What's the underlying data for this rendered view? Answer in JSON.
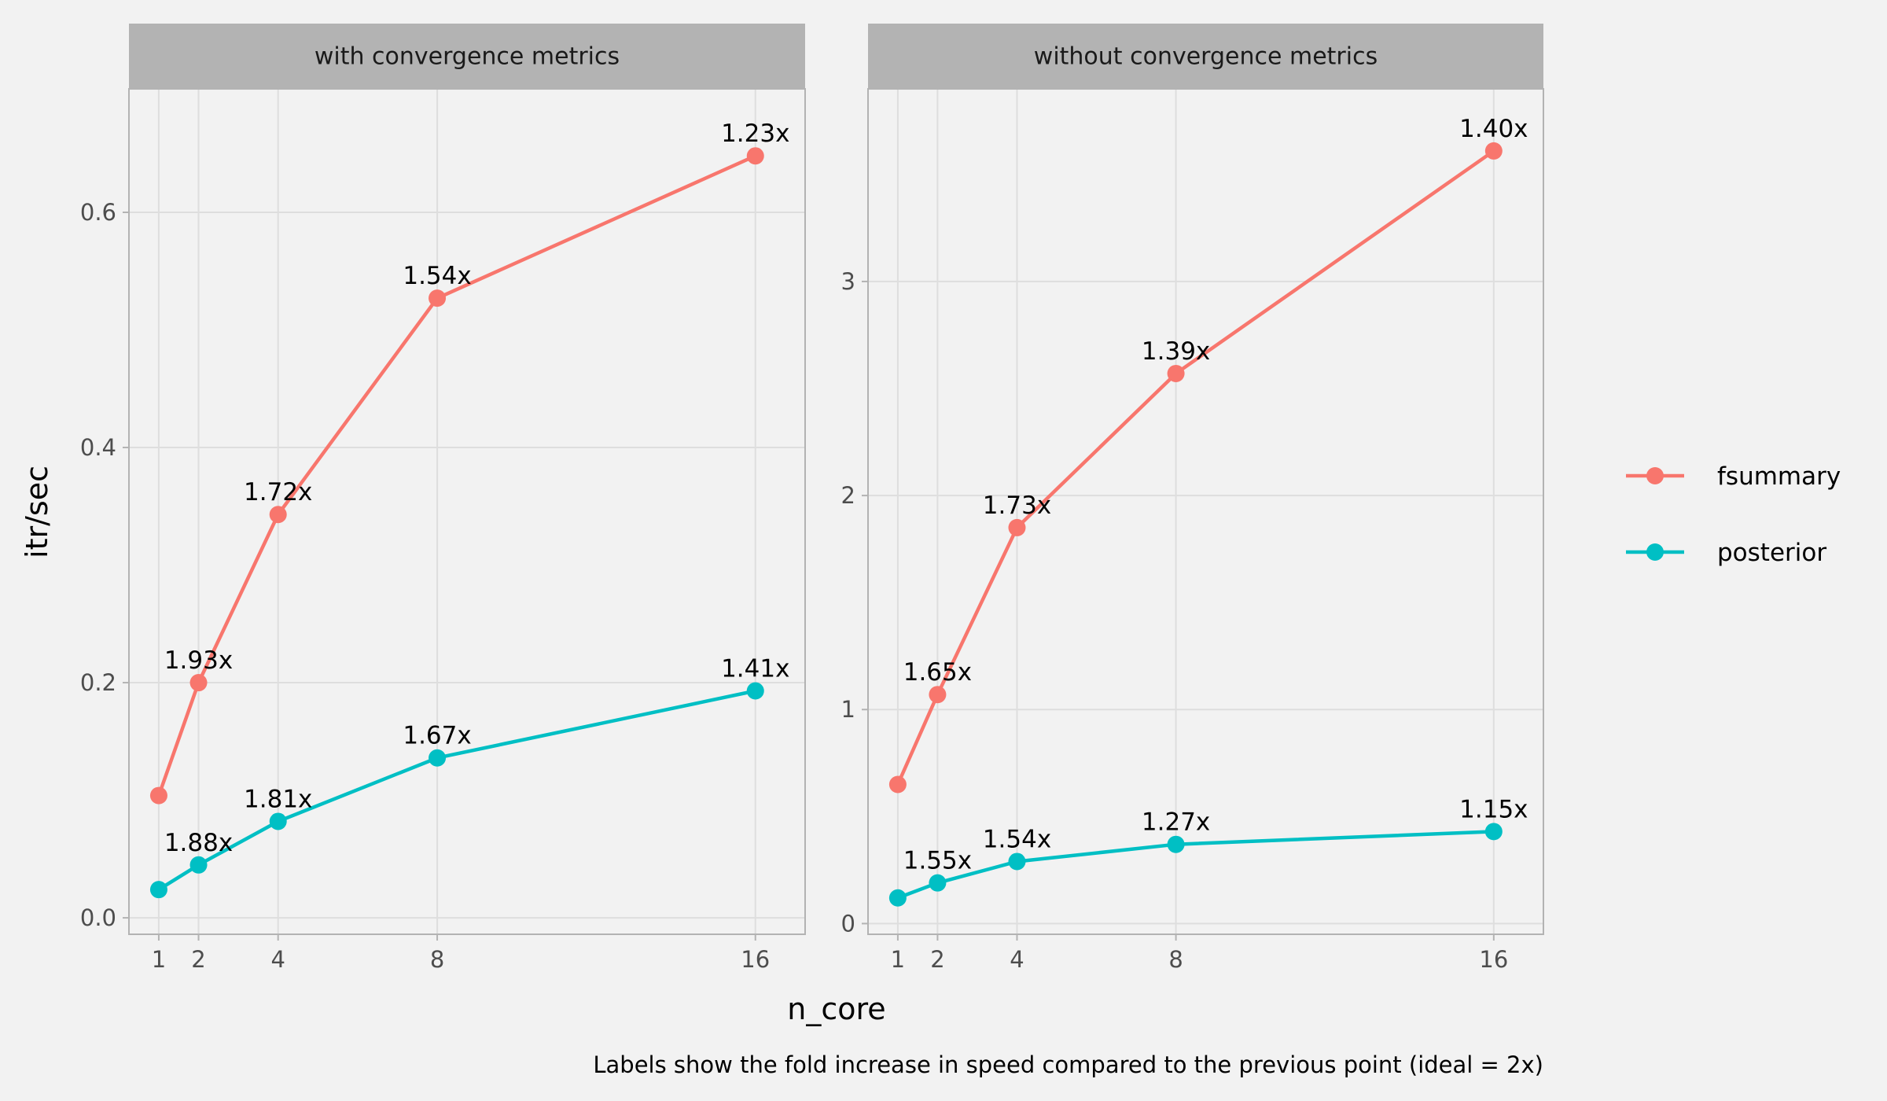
{
  "chart_data": {
    "type": "line",
    "xlabel": "n_core",
    "ylabel": "itr/sec",
    "caption": "Labels show the fold increase in speed compared to the previous point (ideal = 2x)",
    "x_ticks": [
      1,
      2,
      4,
      8,
      16
    ],
    "xlim": [
      0.25,
      17.25
    ],
    "legend_position": "right",
    "grid": true,
    "series_styles": [
      {
        "name": "fsummary",
        "color": "#f8766d"
      },
      {
        "name": "posterior",
        "color": "#00bfc4"
      }
    ],
    "panels": [
      {
        "title": "with convergence metrics",
        "ylim": [
          -0.014,
          0.705
        ],
        "y_ticks": [
          0.0,
          0.2,
          0.4,
          0.6
        ],
        "y_tick_labels": [
          "0.0",
          "0.2",
          "0.4",
          "0.6"
        ],
        "series": [
          {
            "name": "fsummary",
            "x": [
              1,
              2,
              4,
              8,
              16
            ],
            "y": [
              0.104,
              0.2,
              0.343,
              0.527,
              0.648
            ],
            "labels": [
              "",
              "1.93x",
              "1.72x",
              "1.54x",
              "1.23x"
            ]
          },
          {
            "name": "posterior",
            "x": [
              1,
              2,
              4,
              8,
              16
            ],
            "y": [
              0.024,
              0.045,
              0.082,
              0.136,
              0.193
            ],
            "labels": [
              "",
              "1.88x",
              "1.81x",
              "1.67x",
              "1.41x"
            ]
          }
        ]
      },
      {
        "title": "without convergence metrics",
        "ylim": [
          -0.05,
          3.9
        ],
        "y_ticks": [
          0,
          1,
          2,
          3
        ],
        "y_tick_labels": [
          "0",
          "1",
          "2",
          "3"
        ],
        "series": [
          {
            "name": "fsummary",
            "x": [
              1,
              2,
              4,
              8,
              16
            ],
            "y": [
              0.65,
              1.07,
              1.85,
              2.57,
              3.61
            ],
            "labels": [
              "",
              "1.65x",
              "1.73x",
              "1.39x",
              "1.40x"
            ]
          },
          {
            "name": "posterior",
            "x": [
              1,
              2,
              4,
              8,
              16
            ],
            "y": [
              0.12,
              0.19,
              0.29,
              0.37,
              0.43
            ],
            "labels": [
              "",
              "1.55x",
              "1.54x",
              "1.27x",
              "1.15x"
            ]
          }
        ]
      }
    ]
  }
}
